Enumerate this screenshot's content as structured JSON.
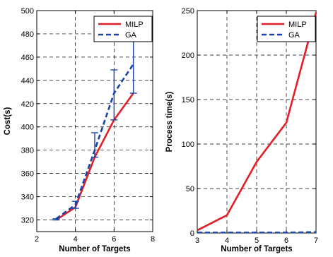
{
  "colors": {
    "milp": "#e41e26",
    "ga": "#1a45a8",
    "grid": "#000000"
  },
  "chart_data": [
    {
      "type": "line",
      "xlabel": "Number of Targets",
      "ylabel": "Cost(s)",
      "xlim": [
        2,
        8
      ],
      "ylim": [
        310,
        500
      ],
      "xticks": [
        2,
        4,
        6,
        8
      ],
      "yticks": [
        320,
        340,
        360,
        380,
        400,
        420,
        440,
        460,
        480,
        500
      ],
      "grid": true,
      "legend_position": "top-right",
      "series": [
        {
          "name": "MILP",
          "style": "solid",
          "color_key": "milp",
          "x": [
            3,
            4,
            5,
            6,
            7
          ],
          "y": [
            320,
            331,
            374,
            406,
            429
          ]
        },
        {
          "name": "GA",
          "style": "dashed",
          "color_key": "ga",
          "x": [
            3,
            4,
            5,
            6,
            7
          ],
          "y": [
            321,
            333,
            380,
            429,
            454
          ],
          "errors": [
            {
              "x": 3,
              "low": 320,
              "high": 321
            },
            {
              "x": 4,
              "low": 330,
              "high": 336
            },
            {
              "x": 5,
              "low": 374,
              "high": 395
            },
            {
              "x": 6,
              "low": 406,
              "high": 449
            },
            {
              "x": 7,
              "low": 429,
              "high": 475
            }
          ]
        }
      ]
    },
    {
      "type": "line",
      "xlabel": "Number of Targets",
      "ylabel": "Process time(s)",
      "xlim": [
        3,
        7
      ],
      "ylim": [
        0,
        250
      ],
      "xticks": [
        3,
        4,
        5,
        6,
        7
      ],
      "yticks": [
        0,
        50,
        100,
        150,
        200,
        250
      ],
      "grid": true,
      "legend_position": "top-right",
      "series": [
        {
          "name": "MILP",
          "style": "solid",
          "color_key": "milp",
          "x": [
            3,
            4,
            5,
            6,
            7
          ],
          "y": [
            3,
            20,
            80,
            124,
            248
          ]
        },
        {
          "name": "GA",
          "style": "dashed",
          "color_key": "ga",
          "x": [
            3,
            4,
            5,
            6,
            7
          ],
          "y": [
            0.5,
            0.5,
            0.5,
            0.5,
            1
          ]
        }
      ]
    }
  ]
}
